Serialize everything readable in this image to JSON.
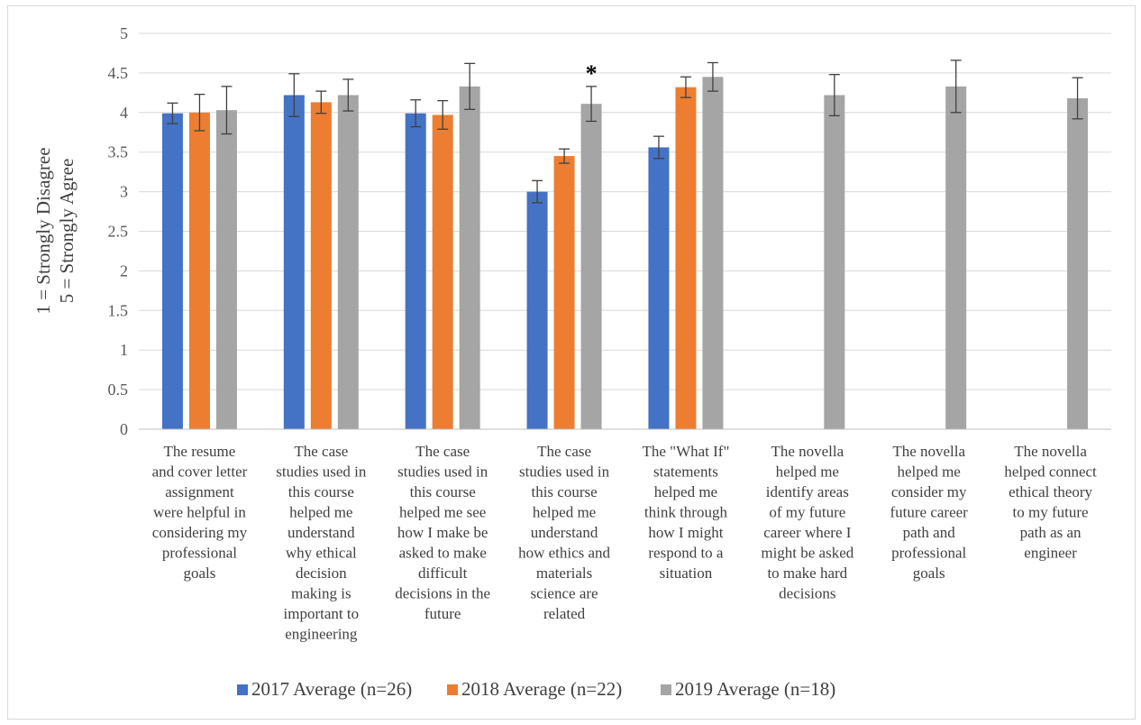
{
  "chart_data": {
    "type": "bar",
    "ylabel_lines": [
      "1 = Strongly Disagree",
      "5 = Strongly Agree"
    ],
    "ylim": [
      0,
      5
    ],
    "yticks": [
      "0",
      "0.5",
      "1",
      "1.5",
      "2",
      "2.5",
      "3",
      "3.5",
      "4",
      "4.5",
      "5"
    ],
    "grid": true,
    "legend_position": "bottom",
    "categories": [
      [
        "The resume",
        "and cover letter",
        "assignment",
        "were helpful in",
        "considering my",
        "professional",
        "goals"
      ],
      [
        "The case",
        "studies used in",
        "this course",
        "helped me",
        "understand",
        "why ethical",
        "decision",
        "making is",
        "important to",
        "engineering"
      ],
      [
        "The case",
        "studies used in",
        "this course",
        "helped me see",
        "how I make be",
        "asked to make",
        "difficult",
        "decisions in the",
        "future"
      ],
      [
        "The case",
        "studies used in",
        "this course",
        "helped me",
        "understand",
        "how ethics and",
        "materials",
        "science are",
        "related"
      ],
      [
        "The \"What If\"",
        "statements",
        "helped me",
        "think through",
        "how I might",
        "respond to a",
        "situation"
      ],
      [
        "The novella",
        "helped me",
        "identify areas",
        "of my future",
        "career where I",
        "might be asked",
        "to make hard",
        "decisions"
      ],
      [
        "The novella",
        "helped me",
        "consider my",
        "future career",
        "path and",
        "professional",
        "goals"
      ],
      [
        "The novella",
        "helped connect",
        "ethical theory",
        "to my future",
        "path as an",
        "engineer"
      ]
    ],
    "series": [
      {
        "name": "2017 Average (n=26)",
        "color": "#4472C4",
        "values": [
          3.99,
          4.22,
          3.99,
          3.0,
          3.56,
          null,
          null,
          null
        ],
        "errors": [
          0.13,
          0.27,
          0.17,
          0.14,
          0.14,
          null,
          null,
          null
        ]
      },
      {
        "name": "2018 Average (n=22)",
        "color": "#ED7D31",
        "values": [
          4.0,
          4.13,
          3.97,
          3.45,
          4.32,
          null,
          null,
          null
        ],
        "errors": [
          0.23,
          0.14,
          0.18,
          0.09,
          0.13,
          null,
          null,
          null
        ]
      },
      {
        "name": "2019 Average (n=18)",
        "color": "#A5A5A5",
        "values": [
          4.03,
          4.22,
          4.33,
          4.11,
          4.45,
          4.22,
          4.33,
          4.18
        ],
        "errors": [
          0.3,
          0.2,
          0.29,
          0.22,
          0.18,
          0.26,
          0.33,
          0.26
        ]
      }
    ],
    "annotations": [
      {
        "category_index": 3,
        "series_index": 2,
        "text": "*"
      }
    ]
  }
}
